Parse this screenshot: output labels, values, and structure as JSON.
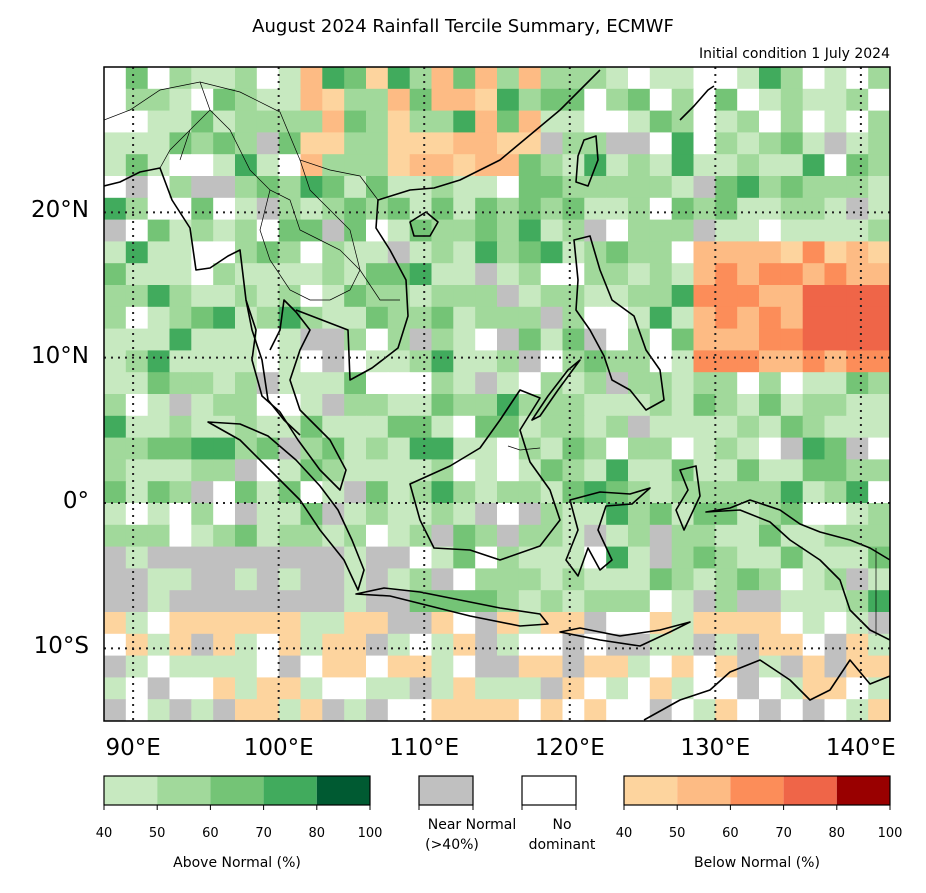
{
  "title": "August 2024 Rainfall Tercile Summary, ECMWF",
  "subtitle": "Initial condition 1 July 2024",
  "map": {
    "lon_range": [
      88,
      142
    ],
    "lat_range": [
      -15,
      30
    ],
    "lon_ticks": [
      {
        "value": 90,
        "label": "90°E"
      },
      {
        "value": 100,
        "label": "100°E"
      },
      {
        "value": 110,
        "label": "110°E"
      },
      {
        "value": 120,
        "label": "120°E"
      },
      {
        "value": 130,
        "label": "130°E"
      },
      {
        "value": 140,
        "label": "140°E"
      }
    ],
    "lat_ticks": [
      {
        "value": 20,
        "label": "20°N"
      },
      {
        "value": 10,
        "label": "10°N"
      },
      {
        "value": 0,
        "label": "0°"
      },
      {
        "value": -10,
        "label": "10°S"
      }
    ],
    "grid_style": "dotted"
  },
  "legend": {
    "above": {
      "caption": "Above Normal (%)",
      "ticks": [
        "40",
        "50",
        "60",
        "70",
        "80",
        "100"
      ],
      "colors": [
        "#c7e9c0",
        "#a1d99b",
        "#74c476",
        "#41ab5d",
        "#005a32"
      ]
    },
    "near": {
      "caption_line1": "Near Normal",
      "caption_line2": "(>40%)",
      "color": "#c0c0c0"
    },
    "nodom": {
      "caption_line1": "No",
      "caption_line2": "dominant",
      "color": "#ffffff"
    },
    "below": {
      "caption": "Below Normal (%)",
      "ticks": [
        "40",
        "50",
        "60",
        "70",
        "80",
        "100"
      ],
      "colors": [
        "#fdd49e",
        "#fdbb84",
        "#fc8d59",
        "#ef6548",
        "#990000"
      ]
    }
  }
}
